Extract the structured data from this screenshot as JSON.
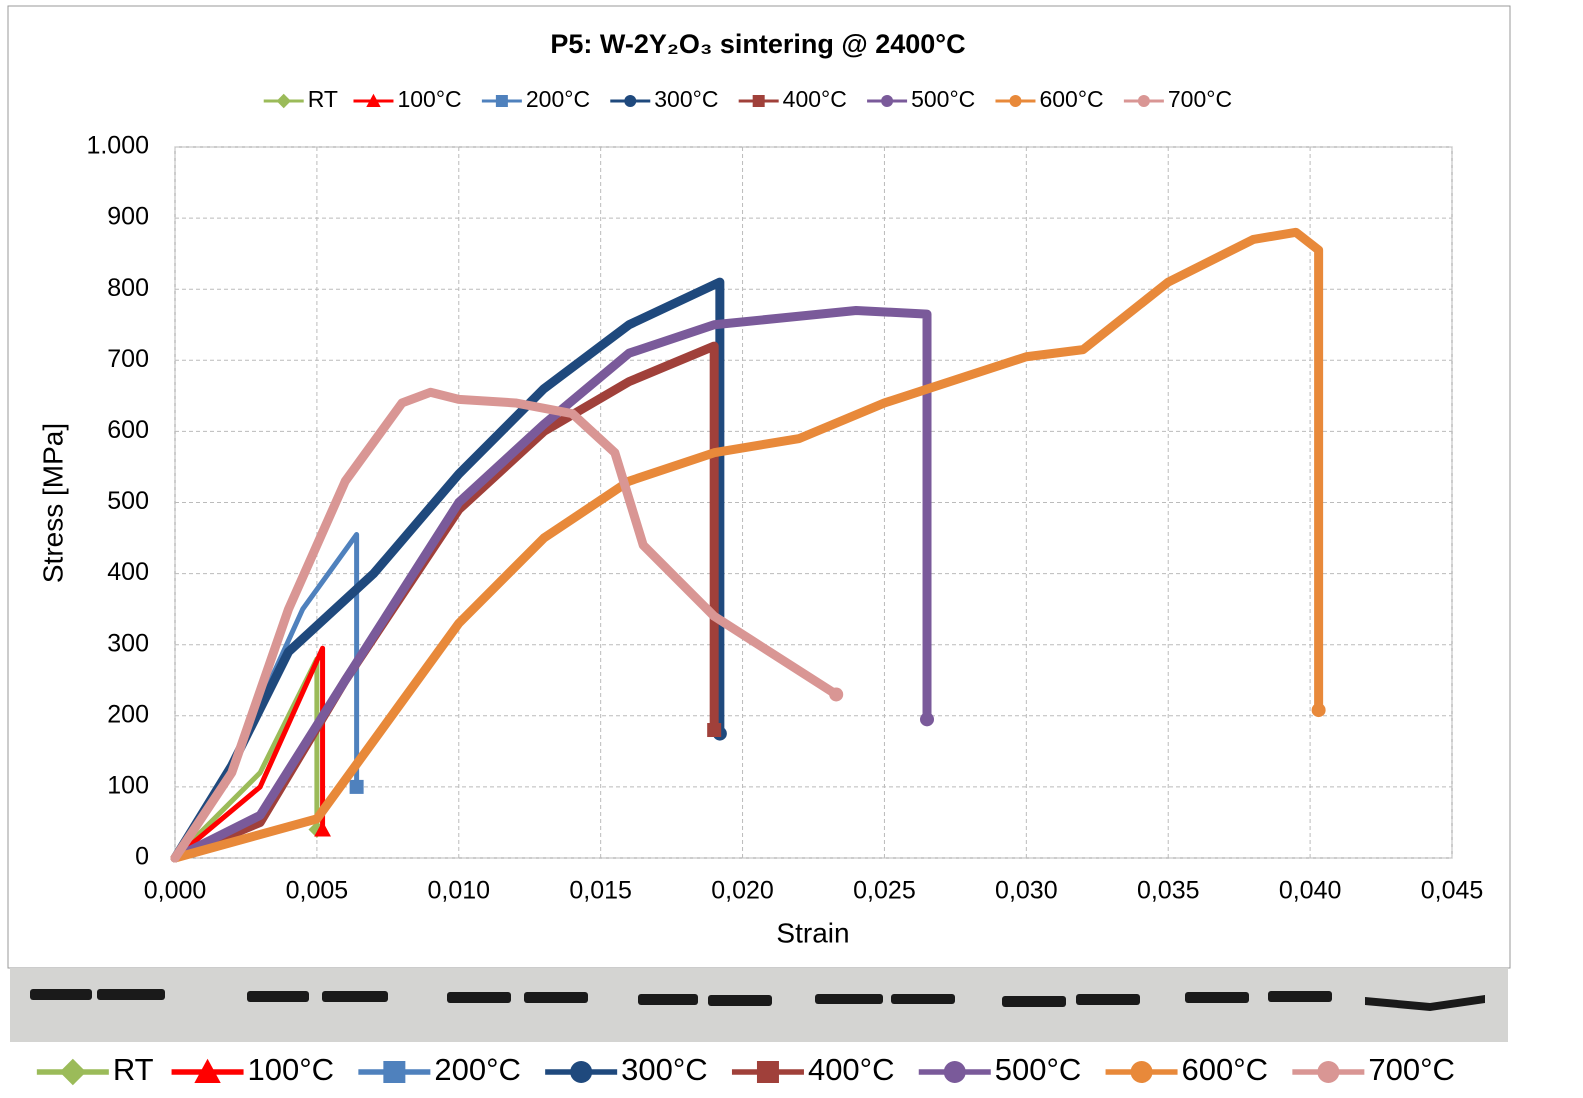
{
  "chart_data": {
    "type": "line",
    "title": "P5: W-2Y₂O₃ sintering @ 2400°C",
    "x_label": "Strain",
    "y_label": "Stress [MPa]",
    "xlim": [
      0,
      0.045
    ],
    "xticks": [
      {
        "value": 0,
        "label": "0,000"
      },
      {
        "value": 0.005,
        "label": "0,005"
      },
      {
        "value": 0.01,
        "label": "0,010"
      },
      {
        "value": 0.015,
        "label": "0,015"
      },
      {
        "value": 0.02,
        "label": "0,020"
      },
      {
        "value": 0.025,
        "label": "0,025"
      },
      {
        "value": 0.03,
        "label": "0,030"
      },
      {
        "value": 0.035,
        "label": "0,035"
      },
      {
        "value": 0.04,
        "label": "0,040"
      },
      {
        "value": 0.045,
        "label": "0,045"
      }
    ],
    "ylim": [
      0,
      1000
    ],
    "yticks": [
      0,
      100,
      200,
      300,
      400,
      500,
      600,
      700,
      800,
      900,
      {
        "value": 1000,
        "label": "1.000"
      }
    ],
    "grid": true,
    "series": [
      {
        "name": "RT",
        "color": "#9bbb59",
        "marker": "diamond",
        "x": [
          0,
          0.003,
          0.005,
          0.005
        ],
        "values": [
          0,
          120,
          280,
          40
        ]
      },
      {
        "name": "100°C",
        "color": "#ff0000",
        "marker": "triangle",
        "x": [
          0,
          0.003,
          0.0052,
          0.0052
        ],
        "values": [
          0,
          100,
          295,
          40
        ]
      },
      {
        "name": "200°C",
        "color": "#4f81bd",
        "marker": "square",
        "x": [
          0,
          0.002,
          0.0045,
          0.0064,
          0.0064
        ],
        "values": [
          0,
          130,
          350,
          455,
          100
        ]
      },
      {
        "name": "300°C",
        "color": "#1f497d",
        "marker": "circle",
        "x": [
          0,
          0.002,
          0.004,
          0.007,
          0.01,
          0.013,
          0.016,
          0.0192,
          0.0192
        ],
        "values": [
          0,
          130,
          290,
          400,
          540,
          660,
          750,
          810,
          175
        ]
      },
      {
        "name": "400°C",
        "color": "#a0403a",
        "marker": "square",
        "x": [
          0,
          0.003,
          0.006,
          0.01,
          0.013,
          0.016,
          0.019,
          0.019
        ],
        "values": [
          0,
          50,
          250,
          490,
          600,
          670,
          720,
          180
        ]
      },
      {
        "name": "500°C",
        "color": "#7a5a9a",
        "marker": "circle",
        "x": [
          0,
          0.003,
          0.006,
          0.01,
          0.013,
          0.016,
          0.019,
          0.024,
          0.0265,
          0.0265
        ],
        "values": [
          0,
          60,
          250,
          500,
          610,
          710,
          750,
          770,
          765,
          195
        ]
      },
      {
        "name": "600°C",
        "color": "#e8893a",
        "marker": "circle",
        "x": [
          0,
          0.005,
          0.008,
          0.01,
          0.013,
          0.016,
          0.019,
          0.022,
          0.025,
          0.03,
          0.032,
          0.035,
          0.038,
          0.0395,
          0.0403,
          0.0403
        ],
        "values": [
          0,
          55,
          220,
          330,
          450,
          530,
          570,
          590,
          640,
          705,
          715,
          810,
          870,
          880,
          855,
          208
        ]
      },
      {
        "name": "700°C",
        "color": "#d99694",
        "marker": "circle",
        "x": [
          0,
          0.002,
          0.004,
          0.006,
          0.008,
          0.009,
          0.01,
          0.012,
          0.014,
          0.0155,
          0.0165,
          0.019,
          0.0233
        ],
        "values": [
          0,
          120,
          350,
          530,
          640,
          655,
          645,
          640,
          625,
          570,
          440,
          340,
          230
        ]
      }
    ]
  }
}
